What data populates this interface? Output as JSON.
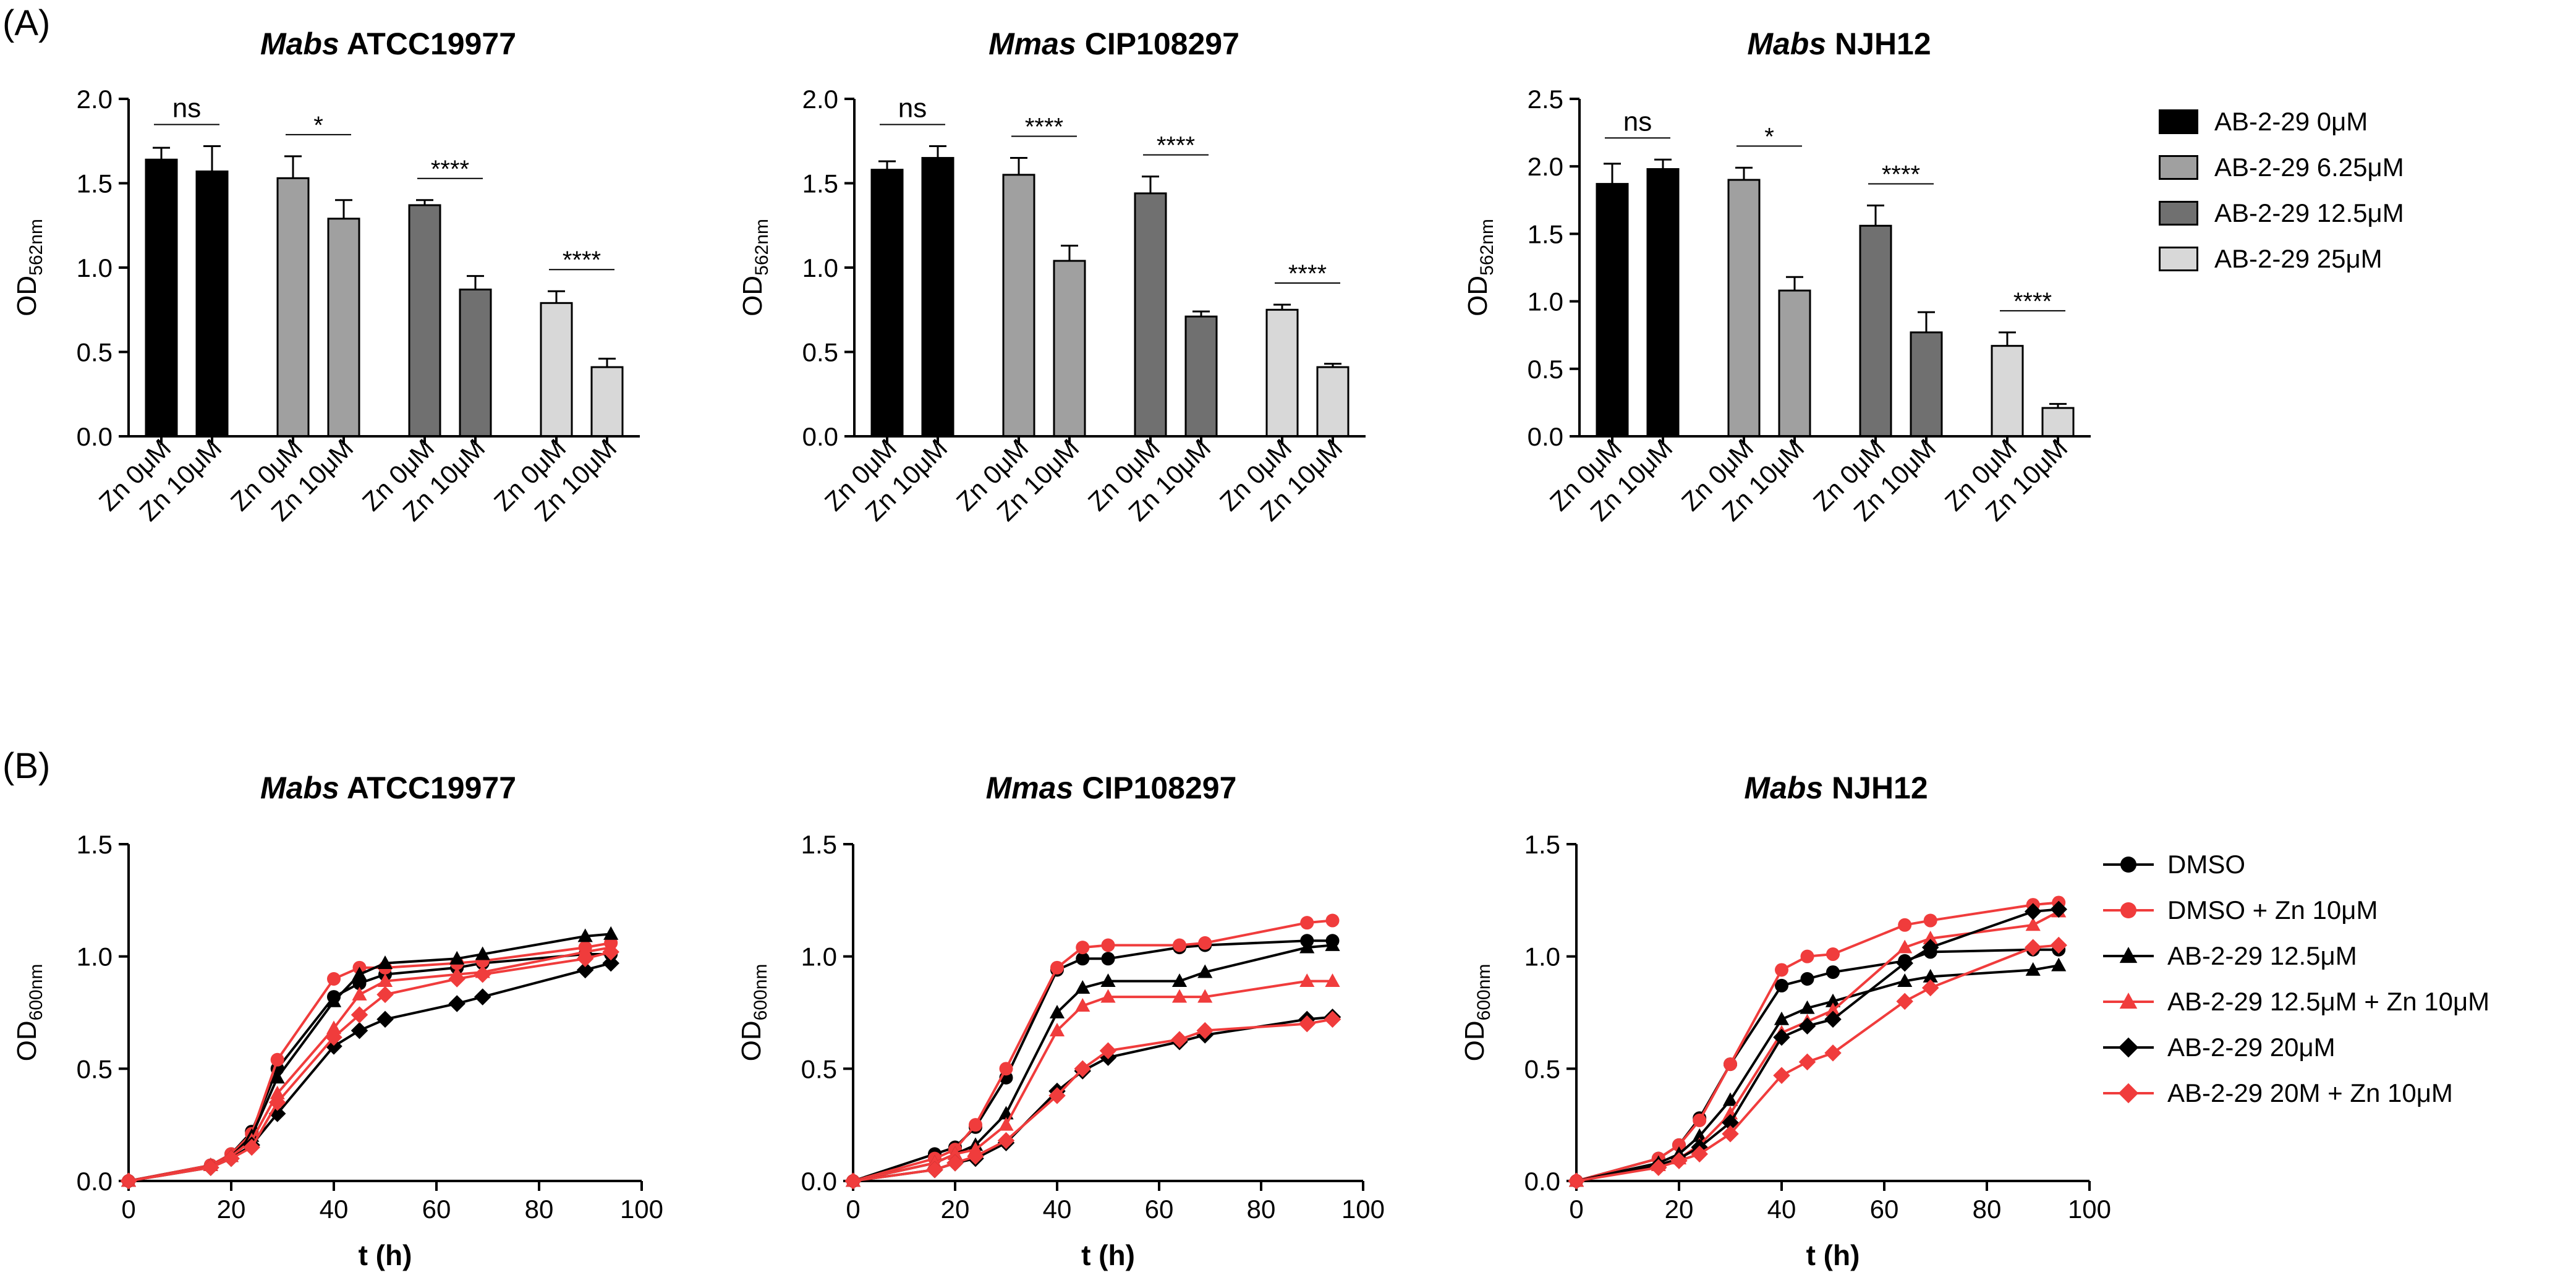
{
  "panel_labels": [
    "(A)",
    "(B)"
  ],
  "colors": {
    "ab0": "#000000",
    "ab625": "#a0a0a0",
    "ab125": "#707070",
    "ab25": "#d8d8d8",
    "black_series": "#000000",
    "red_series": "#f03c3c"
  },
  "legend_a": [
    {
      "label": "AB-2-29 0μM",
      "color_key": "ab0"
    },
    {
      "label": "AB-2-29 6.25μM",
      "color_key": "ab625"
    },
    {
      "label": "AB-2-29 12.5μM",
      "color_key": "ab125"
    },
    {
      "label": "AB-2-29 25μM",
      "color_key": "ab25"
    }
  ],
  "legend_b": [
    {
      "label": "DMSO",
      "marker": "circle",
      "color_key": "black_series"
    },
    {
      "label": "DMSO + Zn 10μM",
      "marker": "circle",
      "color_key": "red_series"
    },
    {
      "label": "AB-2-29 12.5μM",
      "marker": "triangle",
      "color_key": "black_series"
    },
    {
      "label": "AB-2-29 12.5μM + Zn 10μM",
      "marker": "triangle",
      "color_key": "red_series"
    },
    {
      "label": "AB-2-29 20μM",
      "marker": "diamond",
      "color_key": "black_series"
    },
    {
      "label": "AB-2-29 20M + Zn 10μM",
      "marker": "diamond",
      "color_key": "red_series"
    }
  ],
  "chart_data": [
    {
      "type": "bar",
      "panel": "A",
      "title_italic": "Mabs",
      "title_rest": " ATCC19977",
      "ylabel_main": "OD",
      "ylabel_sub": "562nm",
      "ylim": [
        0,
        2.0
      ],
      "yticks": [
        "0.0",
        "0.5",
        "1.0",
        "1.5",
        "2.0"
      ],
      "ytick_values": [
        0,
        0.5,
        1.0,
        1.5,
        2.0
      ],
      "groups": [
        {
          "color_key": "ab0",
          "bars": [
            {
              "label": "Zn 0μM",
              "value": 1.64,
              "err": 0.07
            },
            {
              "label": "Zn 10μM",
              "value": 1.57,
              "err": 0.15
            }
          ],
          "sig": "ns"
        },
        {
          "color_key": "ab625",
          "bars": [
            {
              "label": "Zn 0μM",
              "value": 1.53,
              "err": 0.13
            },
            {
              "label": "Zn 10μM",
              "value": 1.29,
              "err": 0.11
            }
          ],
          "sig": "*"
        },
        {
          "color_key": "ab125",
          "bars": [
            {
              "label": "Zn 0μM",
              "value": 1.37,
              "err": 0.03
            },
            {
              "label": "Zn 10μM",
              "value": 0.87,
              "err": 0.08
            }
          ],
          "sig": "****"
        },
        {
          "color_key": "ab25",
          "bars": [
            {
              "label": "Zn 0μM",
              "value": 0.79,
              "err": 0.07
            },
            {
              "label": "Zn 10μM",
              "value": 0.41,
              "err": 0.05
            }
          ],
          "sig": "****"
        }
      ]
    },
    {
      "type": "bar",
      "panel": "A",
      "title_italic": "Mmas",
      "title_rest": " CIP108297",
      "ylabel_main": "OD",
      "ylabel_sub": "562nm",
      "ylim": [
        0,
        2.0
      ],
      "yticks": [
        "0.0",
        "0.5",
        "1.0",
        "1.5",
        "2.0"
      ],
      "ytick_values": [
        0,
        0.5,
        1.0,
        1.5,
        2.0
      ],
      "groups": [
        {
          "color_key": "ab0",
          "bars": [
            {
              "label": "Zn 0μM",
              "value": 1.58,
              "err": 0.05
            },
            {
              "label": "Zn 10μM",
              "value": 1.65,
              "err": 0.07
            }
          ],
          "sig": "ns"
        },
        {
          "color_key": "ab625",
          "bars": [
            {
              "label": "Zn 0μM",
              "value": 1.55,
              "err": 0.1
            },
            {
              "label": "Zn 10μM",
              "value": 1.04,
              "err": 0.09
            }
          ],
          "sig": "****"
        },
        {
          "color_key": "ab125",
          "bars": [
            {
              "label": "Zn 0μM",
              "value": 1.44,
              "err": 0.1
            },
            {
              "label": "Zn 10μM",
              "value": 0.71,
              "err": 0.03
            }
          ],
          "sig": "****"
        },
        {
          "color_key": "ab25",
          "bars": [
            {
              "label": "Zn 0μM",
              "value": 0.75,
              "err": 0.03
            },
            {
              "label": "Zn 10μM",
              "value": 0.41,
              "err": 0.02
            }
          ],
          "sig": "****"
        }
      ]
    },
    {
      "type": "bar",
      "panel": "A",
      "title_italic": "Mabs",
      "title_rest": " NJH12",
      "ylabel_main": "OD",
      "ylabel_sub": "562nm",
      "ylim": [
        0,
        2.5
      ],
      "yticks": [
        "0.0",
        "0.5",
        "1.0",
        "1.5",
        "2.0",
        "2.5"
      ],
      "ytick_values": [
        0,
        0.5,
        1.0,
        1.5,
        2.0,
        2.5
      ],
      "groups": [
        {
          "color_key": "ab0",
          "bars": [
            {
              "label": "Zn 0μM",
              "value": 1.87,
              "err": 0.15
            },
            {
              "label": "Zn 10μM",
              "value": 1.98,
              "err": 0.07
            }
          ],
          "sig": "ns"
        },
        {
          "color_key": "ab625",
          "bars": [
            {
              "label": "Zn 0μM",
              "value": 1.9,
              "err": 0.09
            },
            {
              "label": "Zn 10μM",
              "value": 1.08,
              "err": 0.1
            }
          ],
          "sig": "*"
        },
        {
          "color_key": "ab125",
          "bars": [
            {
              "label": "Zn 0μM",
              "value": 1.56,
              "err": 0.15
            },
            {
              "label": "Zn 10μM",
              "value": 0.77,
              "err": 0.15
            }
          ],
          "sig": "****"
        },
        {
          "color_key": "ab25",
          "bars": [
            {
              "label": "Zn 0μM",
              "value": 0.67,
              "err": 0.1
            },
            {
              "label": "Zn 10μM",
              "value": 0.21,
              "err": 0.03
            }
          ],
          "sig": "****"
        }
      ]
    },
    {
      "type": "line",
      "panel": "B",
      "title_italic": "Mabs",
      "title_rest": " ATCC19977",
      "ylabel_main": "OD",
      "ylabel_sub": "600nm",
      "xlabel": "t (h)",
      "xlim": [
        0,
        100
      ],
      "ylim": [
        0,
        1.5
      ],
      "xticks": [
        "0",
        "20",
        "40",
        "60",
        "80",
        "100"
      ],
      "xtick_values": [
        0,
        20,
        40,
        60,
        80,
        100
      ],
      "yticks": [
        "0.0",
        "0.5",
        "1.0",
        "1.5"
      ],
      "ytick_values": [
        0,
        0.5,
        1.0,
        1.5
      ],
      "x": [
        0,
        16,
        20,
        24,
        29,
        40,
        45,
        50,
        64,
        69,
        89,
        94
      ],
      "series": [
        {
          "name": "DMSO",
          "marker": "circle",
          "color_key": "black_series",
          "values": [
            0,
            0.07,
            0.12,
            0.22,
            0.5,
            0.82,
            0.88,
            0.92,
            0.95,
            0.97,
            1.01,
            1.01
          ]
        },
        {
          "name": "DMSO + Zn 10μM",
          "marker": "circle",
          "color_key": "red_series",
          "values": [
            0,
            0.07,
            0.12,
            0.21,
            0.54,
            0.9,
            0.95,
            0.95,
            0.97,
            0.98,
            1.04,
            1.06
          ]
        },
        {
          "name": "AB-2-29 12.5μM",
          "marker": "triangle",
          "color_key": "black_series",
          "values": [
            0,
            0.07,
            0.11,
            0.2,
            0.46,
            0.8,
            0.92,
            0.97,
            0.99,
            1.01,
            1.09,
            1.1
          ]
        },
        {
          "name": "AB-2-29 12.5μM + Zn 10μM",
          "marker": "triangle",
          "color_key": "red_series",
          "values": [
            0,
            0.07,
            0.11,
            0.18,
            0.39,
            0.68,
            0.83,
            0.89,
            0.92,
            0.93,
            1.02,
            1.04
          ]
        },
        {
          "name": "AB-2-29 20μM",
          "marker": "diamond",
          "color_key": "black_series",
          "values": [
            0,
            0.06,
            0.1,
            0.16,
            0.3,
            0.6,
            0.67,
            0.72,
            0.79,
            0.82,
            0.94,
            0.97
          ]
        },
        {
          "name": "AB-2-29 20M + Zn 10μM",
          "marker": "diamond",
          "color_key": "red_series",
          "values": [
            0,
            0.06,
            0.1,
            0.15,
            0.35,
            0.64,
            0.74,
            0.83,
            0.9,
            0.92,
            0.99,
            1.02
          ]
        }
      ]
    },
    {
      "type": "line",
      "panel": "B",
      "title_italic": "Mmas",
      "title_rest": " CIP108297",
      "ylabel_main": "OD",
      "ylabel_sub": "600nm",
      "xlabel": "t (h)",
      "xlim": [
        0,
        100
      ],
      "ylim": [
        0,
        1.5
      ],
      "xticks": [
        "0",
        "20",
        "40",
        "60",
        "80",
        "100"
      ],
      "xtick_values": [
        0,
        20,
        40,
        60,
        80,
        100
      ],
      "yticks": [
        "0.0",
        "0.5",
        "1.0",
        "1.5"
      ],
      "ytick_values": [
        0,
        0.5,
        1.0,
        1.5
      ],
      "x": [
        0,
        16,
        20,
        24,
        30,
        40,
        45,
        50,
        64,
        69,
        89,
        94
      ],
      "series": [
        {
          "name": "DMSO",
          "marker": "circle",
          "color_key": "black_series",
          "values": [
            0,
            0.12,
            0.15,
            0.24,
            0.46,
            0.94,
            0.99,
            0.99,
            1.04,
            1.05,
            1.07,
            1.07
          ]
        },
        {
          "name": "DMSO + Zn 10μM",
          "marker": "circle",
          "color_key": "red_series",
          "values": [
            0,
            0.1,
            0.14,
            0.25,
            0.5,
            0.95,
            1.04,
            1.05,
            1.05,
            1.06,
            1.15,
            1.16
          ]
        },
        {
          "name": "AB-2-29 12.5μM",
          "marker": "triangle",
          "color_key": "black_series",
          "values": [
            0,
            0.08,
            0.12,
            0.16,
            0.3,
            0.75,
            0.86,
            0.89,
            0.89,
            0.93,
            1.04,
            1.05
          ]
        },
        {
          "name": "AB-2-29 12.5μM + Zn 10μM",
          "marker": "triangle",
          "color_key": "red_series",
          "values": [
            0,
            0.08,
            0.12,
            0.14,
            0.25,
            0.67,
            0.78,
            0.82,
            0.82,
            0.82,
            0.89,
            0.89
          ]
        },
        {
          "name": "AB-2-29 20μM",
          "marker": "diamond",
          "color_key": "black_series",
          "values": [
            0,
            0.05,
            0.08,
            0.1,
            0.17,
            0.4,
            0.49,
            0.55,
            0.62,
            0.65,
            0.72,
            0.73
          ]
        },
        {
          "name": "AB-2-29 20M + Zn 10μM",
          "marker": "diamond",
          "color_key": "red_series",
          "values": [
            0,
            0.05,
            0.08,
            0.11,
            0.18,
            0.38,
            0.5,
            0.58,
            0.63,
            0.67,
            0.7,
            0.72
          ]
        }
      ]
    },
    {
      "type": "line",
      "panel": "B",
      "title_italic": "Mabs",
      "title_rest": " NJH12",
      "ylabel_main": "OD",
      "ylabel_sub": "600nm",
      "xlabel": "t (h)",
      "xlim": [
        0,
        100
      ],
      "ylim": [
        0,
        1.5
      ],
      "xticks": [
        "0",
        "20",
        "40",
        "60",
        "80",
        "100"
      ],
      "xtick_values": [
        0,
        20,
        40,
        60,
        80,
        100
      ],
      "yticks": [
        "0.0",
        "0.5",
        "1.0",
        "1.5"
      ],
      "ytick_values": [
        0,
        0.5,
        1.0,
        1.5
      ],
      "x": [
        0,
        16,
        20,
        24,
        30,
        40,
        45,
        50,
        64,
        69,
        89,
        94
      ],
      "series": [
        {
          "name": "DMSO",
          "marker": "circle",
          "color_key": "black_series",
          "values": [
            0,
            0.1,
            0.16,
            0.28,
            0.52,
            0.87,
            0.9,
            0.93,
            0.98,
            1.02,
            1.03,
            1.03
          ]
        },
        {
          "name": "DMSO + Zn 10μM",
          "marker": "circle",
          "color_key": "red_series",
          "values": [
            0,
            0.1,
            0.16,
            0.27,
            0.52,
            0.94,
            1.0,
            1.01,
            1.14,
            1.16,
            1.23,
            1.24
          ]
        },
        {
          "name": "AB-2-29 12.5μM",
          "marker": "triangle",
          "color_key": "black_series",
          "values": [
            0,
            0.08,
            0.12,
            0.2,
            0.36,
            0.72,
            0.77,
            0.8,
            0.89,
            0.91,
            0.94,
            0.96
          ]
        },
        {
          "name": "AB-2-29 12.5μM + Zn 10μM",
          "marker": "triangle",
          "color_key": "red_series",
          "values": [
            0,
            0.07,
            0.1,
            0.16,
            0.3,
            0.66,
            0.71,
            0.76,
            1.04,
            1.08,
            1.14,
            1.2
          ]
        },
        {
          "name": "AB-2-29 20μM",
          "marker": "diamond",
          "color_key": "black_series",
          "values": [
            0,
            0.07,
            0.1,
            0.15,
            0.26,
            0.64,
            0.69,
            0.72,
            0.97,
            1.04,
            1.2,
            1.21
          ]
        },
        {
          "name": "AB-2-29 20M + Zn 10μM",
          "marker": "diamond",
          "color_key": "red_series",
          "values": [
            0,
            0.06,
            0.09,
            0.12,
            0.21,
            0.47,
            0.53,
            0.57,
            0.8,
            0.86,
            1.04,
            1.05
          ]
        }
      ]
    }
  ]
}
